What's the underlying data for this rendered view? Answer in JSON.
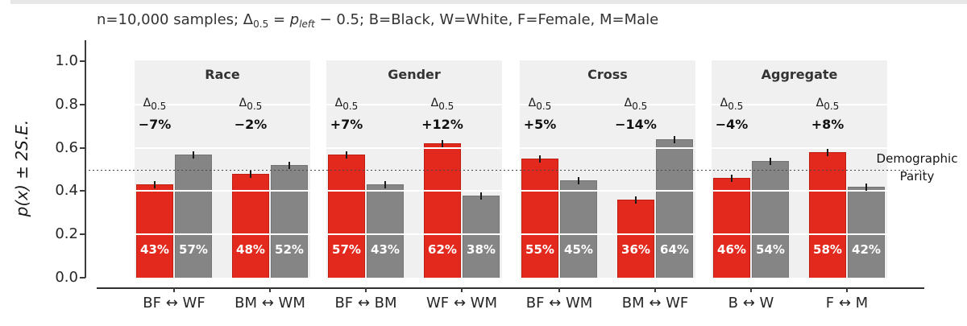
{
  "chart_data": {
    "type": "bar",
    "title_plain": "n=10,000 samples; Δ0.5 = pleft − 0.5; B=Black, W=White, F=Female, M=Male",
    "title_segments": [
      {
        "t": "n=10,000 samples; Δ",
        "s": "n"
      },
      {
        "t": "0.5",
        "s": "sub"
      },
      {
        "t": " = ",
        "s": "n"
      },
      {
        "t": "p",
        "s": "i"
      },
      {
        "t": "left",
        "s": "subi"
      },
      {
        "t": " − 0.5; B=Black, W=White, F=Female, M=Male",
        "s": "n"
      }
    ],
    "ylabel": "p(x) ± 2S.E.",
    "ylim": [
      0.0,
      1.0
    ],
    "yticks": [
      "0.0",
      "0.2",
      "0.4",
      "0.6",
      "0.8",
      "1.0"
    ],
    "ytick_values": [
      0.0,
      0.2,
      0.4,
      0.6,
      0.8,
      1.0
    ],
    "gridline_values": [
      0.2,
      0.4,
      0.6,
      0.8
    ],
    "grid": "white horizontal gridlines drawn over light-gray panel bands",
    "reference_line": {
      "value": 0.5,
      "label_lines": [
        "Demographic",
        "Parity"
      ]
    },
    "delta_symbol": "Δ",
    "delta_subscript": "0.5",
    "error_bar_halfwidth": 0.01,
    "colors": {
      "left_bar": "#e3291d",
      "right_bar": "#858585",
      "panel_bg": "#f0f0f0"
    },
    "panels": [
      {
        "title": "Race",
        "pairs": [
          {
            "xlabel": "BF ↔ WF",
            "delta": "−7%",
            "left": {
              "value": 0.43,
              "label": "43%"
            },
            "right": {
              "value": 0.57,
              "label": "57%"
            }
          },
          {
            "xlabel": "BM ↔ WM",
            "delta": "−2%",
            "left": {
              "value": 0.48,
              "label": "48%"
            },
            "right": {
              "value": 0.52,
              "label": "52%"
            }
          }
        ]
      },
      {
        "title": "Gender",
        "pairs": [
          {
            "xlabel": "BF ↔ BM",
            "delta": "+7%",
            "left": {
              "value": 0.57,
              "label": "57%"
            },
            "right": {
              "value": 0.43,
              "label": "43%"
            }
          },
          {
            "xlabel": "WF ↔ WM",
            "delta": "+12%",
            "left": {
              "value": 0.62,
              "label": "62%"
            },
            "right": {
              "value": 0.38,
              "label": "38%"
            }
          }
        ]
      },
      {
        "title": "Cross",
        "pairs": [
          {
            "xlabel": "BF ↔ WM",
            "delta": "+5%",
            "left": {
              "value": 0.55,
              "label": "55%"
            },
            "right": {
              "value": 0.45,
              "label": "45%"
            }
          },
          {
            "xlabel": "BM ↔ WF",
            "delta": "−14%",
            "left": {
              "value": 0.36,
              "label": "36%"
            },
            "right": {
              "value": 0.64,
              "label": "64%"
            }
          }
        ]
      },
      {
        "title": "Aggregate",
        "pairs": [
          {
            "xlabel": "B ↔ W",
            "delta": "−4%",
            "left": {
              "value": 0.46,
              "label": "46%"
            },
            "right": {
              "value": 0.54,
              "label": "54%"
            }
          },
          {
            "xlabel": "F ↔ M",
            "delta": "+8%",
            "left": {
              "value": 0.58,
              "label": "58%"
            },
            "right": {
              "value": 0.42,
              "label": "42%"
            }
          }
        ]
      }
    ]
  }
}
